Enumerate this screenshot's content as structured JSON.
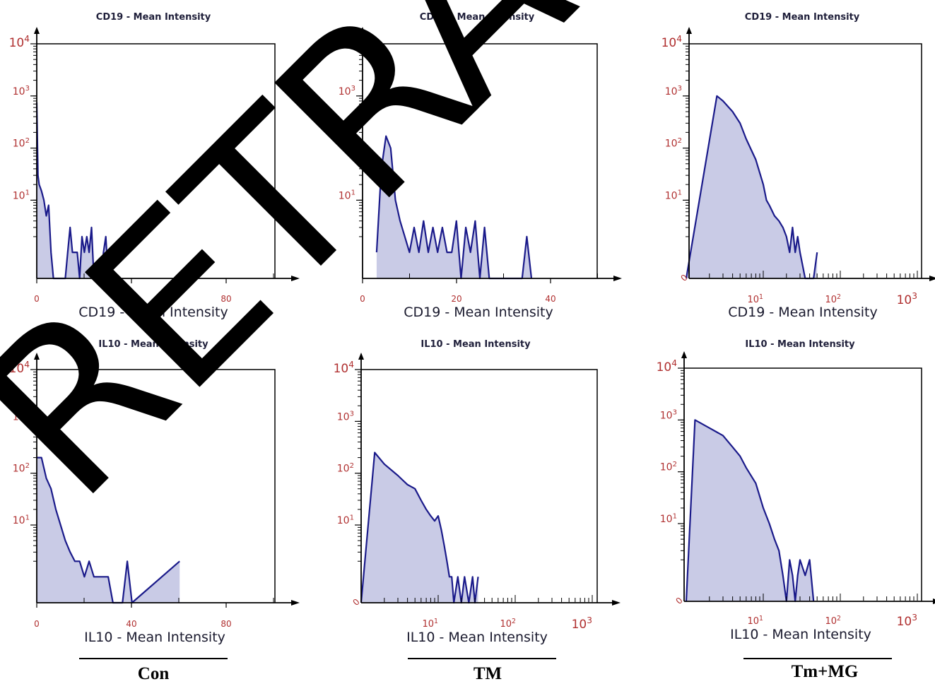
{
  "colors": {
    "line": "#1a1a8a",
    "fill": "#c9cbe6",
    "tick_label": "#b03030",
    "axis": "#000000"
  },
  "watermark": "RETRACTED",
  "groups": [
    {
      "label": "Con"
    },
    {
      "label": "TM"
    },
    {
      "label": "Tm+MG"
    }
  ],
  "chart_data": [
    {
      "type": "area",
      "title": "CD19 - Mean Intensity",
      "xlabel": "CD19 - Mean Intensity",
      "xscale": "linear",
      "xlim": [
        0,
        100
      ],
      "xticks": [
        "0",
        "40",
        "80"
      ],
      "yscale": "log",
      "ylim": [
        0,
        10000
      ],
      "yticks": [
        "10^1",
        "10^2",
        "10^3",
        "10^4"
      ],
      "x": [
        0,
        0.5,
        1,
        2,
        3,
        4,
        5,
        6,
        7,
        8,
        9,
        10,
        11,
        12,
        13,
        14,
        15,
        16,
        17,
        18,
        19,
        20,
        21,
        22,
        23,
        24,
        25,
        26,
        27,
        28,
        29,
        30
      ],
      "y": [
        750,
        30,
        20,
        15,
        10,
        5,
        8,
        1,
        0,
        0,
        0,
        0,
        0,
        0,
        1,
        3,
        1,
        1,
        1,
        0,
        2,
        1,
        2,
        1,
        3,
        0,
        0,
        0,
        0,
        1,
        2,
        0
      ]
    },
    {
      "type": "area",
      "title": "CD19 - Mean Intensity",
      "xlabel": "CD19 - Mean Intensity",
      "xscale": "linear",
      "xlim": [
        -3,
        47
      ],
      "xticks": [
        "0",
        "20",
        "40"
      ],
      "yscale": "log",
      "ylim": [
        0,
        10000
      ],
      "yticks": [
        "10^1",
        "10^2",
        "10^3",
        "10^4"
      ],
      "x": [
        0,
        1,
        2,
        3,
        4,
        5,
        6,
        7,
        8,
        9,
        10,
        11,
        12,
        13,
        14,
        15,
        16,
        17,
        18,
        19,
        20,
        21,
        22,
        23,
        24,
        25,
        26,
        27,
        28,
        29,
        30,
        31,
        32,
        33
      ],
      "y": [
        1,
        40,
        170,
        100,
        10,
        4,
        2,
        1,
        3,
        1,
        4,
        1,
        3,
        1,
        3,
        1,
        1,
        4,
        0,
        3,
        1,
        4,
        0,
        3,
        0,
        0,
        0,
        0,
        0,
        0,
        0,
        0,
        2,
        0
      ]
    },
    {
      "type": "area",
      "title": "CD19 - Mean Intensity",
      "xlabel": "CD19 - Mean Intensity",
      "xscale": "log",
      "xlim": [
        1,
        1000
      ],
      "xticks": [
        "10^1",
        "10^2",
        "10^3"
      ],
      "yscale": "log",
      "ylim": [
        0,
        10000
      ],
      "yticks": [
        "10^1",
        "10^2",
        "10^3",
        "10^4"
      ],
      "x": [
        1,
        2.5,
        3,
        4,
        5,
        6,
        8,
        10,
        11,
        12,
        14,
        16,
        18,
        20,
        22,
        24,
        26,
        28,
        30,
        35,
        40,
        45,
        50
      ],
      "y": [
        0,
        1000,
        800,
        500,
        300,
        150,
        60,
        20,
        10,
        8,
        5,
        4,
        3,
        2,
        1,
        3,
        1,
        2,
        1,
        0,
        0,
        0,
        1
      ]
    },
    {
      "type": "area",
      "title": "IL10 - Mean Intensity",
      "xlabel": "IL10 - Mean Intensity",
      "xscale": "linear",
      "xlim": [
        0,
        100
      ],
      "xticks": [
        "0",
        "40",
        "80"
      ],
      "yscale": "log",
      "ylim": [
        0,
        10000
      ],
      "yticks": [
        "10^1",
        "10^2",
        "10^3",
        "10^4"
      ],
      "x": [
        0,
        2,
        4,
        6,
        8,
        10,
        12,
        14,
        16,
        18,
        20,
        22,
        24,
        26,
        28,
        30,
        32,
        34,
        36,
        38,
        40,
        60
      ],
      "y": [
        200,
        200,
        80,
        50,
        20,
        10,
        5,
        3,
        2,
        2,
        1,
        2,
        1,
        1,
        1,
        1,
        0,
        0,
        0,
        2,
        0,
        2
      ]
    },
    {
      "type": "area",
      "title": "IL10 - Mean Intensity",
      "xlabel": "IL10 - Mean Intensity",
      "xscale": "log",
      "xlim": [
        1,
        1000
      ],
      "xticks": [
        "10^1",
        "10^2",
        "10^3"
      ],
      "yscale": "log",
      "ylim": [
        0,
        10000
      ],
      "yticks": [
        "10^1",
        "10^2",
        "10^3",
        "10^4"
      ],
      "x": [
        1,
        1.5,
        2,
        3,
        4,
        5,
        6,
        7,
        8,
        9,
        10,
        11,
        12,
        13,
        14,
        15,
        16,
        18,
        20,
        22,
        25,
        28,
        30,
        33
      ],
      "y": [
        0,
        250,
        150,
        90,
        60,
        50,
        30,
        20,
        15,
        12,
        15,
        8,
        4,
        2,
        1,
        1,
        0,
        1,
        0,
        1,
        0,
        1,
        0,
        1
      ]
    },
    {
      "type": "area",
      "title": "IL10 - Mean Intensity",
      "xlabel": "IL10 - Mean Intensity",
      "xscale": "log",
      "xlim": [
        1,
        1000
      ],
      "xticks": [
        "10^1",
        "10^2",
        "10^3"
      ],
      "yscale": "log",
      "ylim": [
        0,
        10000
      ],
      "yticks": [
        "10^1",
        "10^2",
        "10^3",
        "10^4"
      ],
      "x": [
        1,
        1.3,
        2,
        3,
        4,
        5,
        6,
        8,
        10,
        12,
        14,
        16,
        18,
        20,
        22,
        24,
        26,
        28,
        30,
        35,
        40,
        45
      ],
      "y": [
        0,
        1000,
        700,
        500,
        300,
        200,
        120,
        60,
        20,
        10,
        5,
        3,
        1,
        0,
        2,
        1,
        0,
        1,
        2,
        1,
        2,
        0
      ]
    }
  ]
}
